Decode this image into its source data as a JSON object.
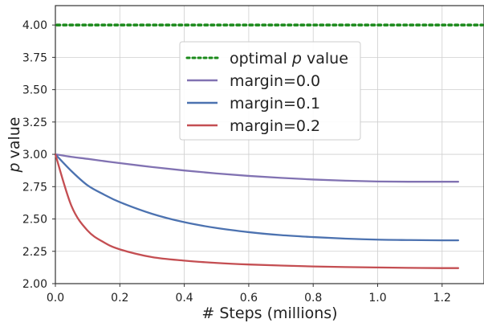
{
  "chart_data": {
    "type": "line",
    "title": "",
    "xlabel": "# Steps (millions)",
    "ylabel": "value",
    "ylabel_italic_prefix": "p",
    "xlim": [
      0.0,
      1.33
    ],
    "ylim": [
      2.0,
      4.15
    ],
    "x_ticks": [
      0.0,
      0.2,
      0.4,
      0.6,
      0.8,
      1.0,
      1.2
    ],
    "x_tick_labels": [
      "0.0",
      "0.2",
      "0.4",
      "0.6",
      "0.8",
      "1.0",
      "1.2"
    ],
    "y_ticks": [
      2.0,
      2.25,
      2.5,
      2.75,
      3.0,
      3.25,
      3.5,
      3.75,
      4.0
    ],
    "y_tick_labels": [
      "2.00",
      "2.25",
      "2.50",
      "2.75",
      "3.00",
      "3.25",
      "3.50",
      "3.75",
      "4.00"
    ],
    "grid": true,
    "legend_position": "top-center",
    "reference_line": {
      "name": "optimal p value",
      "label_prefix": "optimal ",
      "label_italic": "p",
      "label_suffix": " value",
      "y": 4.0,
      "color": "#1b8a1b",
      "style": "dotted"
    },
    "x": [
      0.0,
      0.05,
      0.1,
      0.15,
      0.2,
      0.3,
      0.4,
      0.5,
      0.6,
      0.7,
      0.8,
      0.9,
      1.0,
      1.1,
      1.2,
      1.25
    ],
    "series": [
      {
        "name": "margin=0.0",
        "color": "#8172b2",
        "values": [
          3.0,
          2.98,
          2.965,
          2.948,
          2.932,
          2.902,
          2.875,
          2.852,
          2.833,
          2.818,
          2.805,
          2.796,
          2.79,
          2.788,
          2.788,
          2.788
        ]
      },
      {
        "name": "margin=0.1",
        "color": "#4c72b0",
        "values": [
          3.0,
          2.87,
          2.76,
          2.69,
          2.63,
          2.54,
          2.475,
          2.43,
          2.398,
          2.375,
          2.36,
          2.348,
          2.34,
          2.337,
          2.335,
          2.335
        ]
      },
      {
        "name": "margin=0.2",
        "color": "#c44e52",
        "values": [
          3.0,
          2.6,
          2.41,
          2.32,
          2.265,
          2.205,
          2.178,
          2.16,
          2.148,
          2.14,
          2.133,
          2.128,
          2.125,
          2.122,
          2.12,
          2.12
        ]
      }
    ]
  }
}
